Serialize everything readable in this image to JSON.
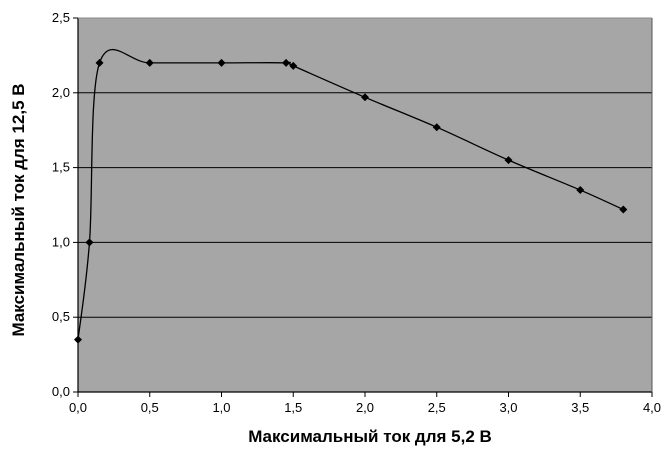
{
  "chart_data": {
    "type": "line",
    "title": "",
    "xlabel": "Максимальный ток для 5,2 В",
    "ylabel": "Максимальный ток для 12,5 В",
    "xlim": [
      0,
      4
    ],
    "ylim": [
      0,
      2.5
    ],
    "grid": "horizontal",
    "legend": "none",
    "x_ticks": [
      "0,0",
      "0,5",
      "1,0",
      "1,5",
      "2,0",
      "2,5",
      "3,0",
      "3,5",
      "4,0"
    ],
    "y_ticks": [
      "0,0",
      "0,5",
      "1,0",
      "1,5",
      "2,0",
      "2,5"
    ],
    "series": [
      {
        "color": "#000000",
        "smoothed": true,
        "x": [
          0,
          0.08,
          0.15,
          0.5,
          1.0,
          1.45,
          1.5,
          2.0,
          2.5,
          3.0,
          3.5,
          3.8
        ],
        "y": [
          0.35,
          1.0,
          2.2,
          2.2,
          2.2,
          2.2,
          2.18,
          1.97,
          1.77,
          1.55,
          1.35,
          1.22
        ]
      }
    ],
    "colors": {
      "plot_background": "#a6a6a6",
      "gridline": "#000000",
      "line": "#000000"
    }
  }
}
